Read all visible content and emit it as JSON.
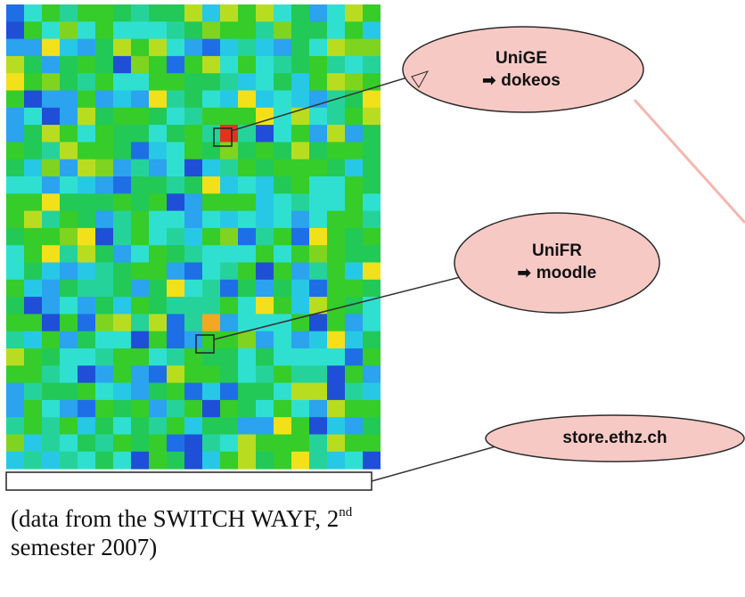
{
  "caption": {
    "part1": "(data from the SWITCH WAYF, 2",
    "sup": "nd",
    "part2": " semester 2007)"
  },
  "callouts": [
    {
      "line1": "UniGE",
      "line2": "dokeos",
      "arrow_icon": "right-arrow-icon"
    },
    {
      "line1": "UniFR",
      "line2": "moodle",
      "arrow_icon": "right-arrow-icon"
    },
    {
      "line1": "store.ethz.ch"
    }
  ],
  "colors": {
    "bubble_fill": "#f7c9c5",
    "bubble_stroke": "#2b2b2b",
    "pointer_line": "#f4b7b1",
    "highlight_red": "#e0341c",
    "highlight_orange": "#f5a623",
    "palette": [
      "#1f4fd6",
      "#1e6fe6",
      "#2ba3ee",
      "#27c8e6",
      "#2fe0d0",
      "#25d39a",
      "#22c956",
      "#36cc2a",
      "#7fd420",
      "#b8dd20",
      "#f2e01b",
      "#f3a51f"
    ]
  },
  "chart_data": {
    "type": "heatmap",
    "colormap": "jet",
    "rows": 27,
    "cols": 21,
    "highlighted_cells": [
      {
        "label": "UniGE dokeos",
        "row": 7,
        "col": 12,
        "level": "high"
      },
      {
        "label": "UniFR moodle",
        "row": 18,
        "col": 11,
        "level": "medium"
      }
    ],
    "highlighted_rows": [
      {
        "label": "store.ethz.ch",
        "row": 26
      }
    ]
  }
}
